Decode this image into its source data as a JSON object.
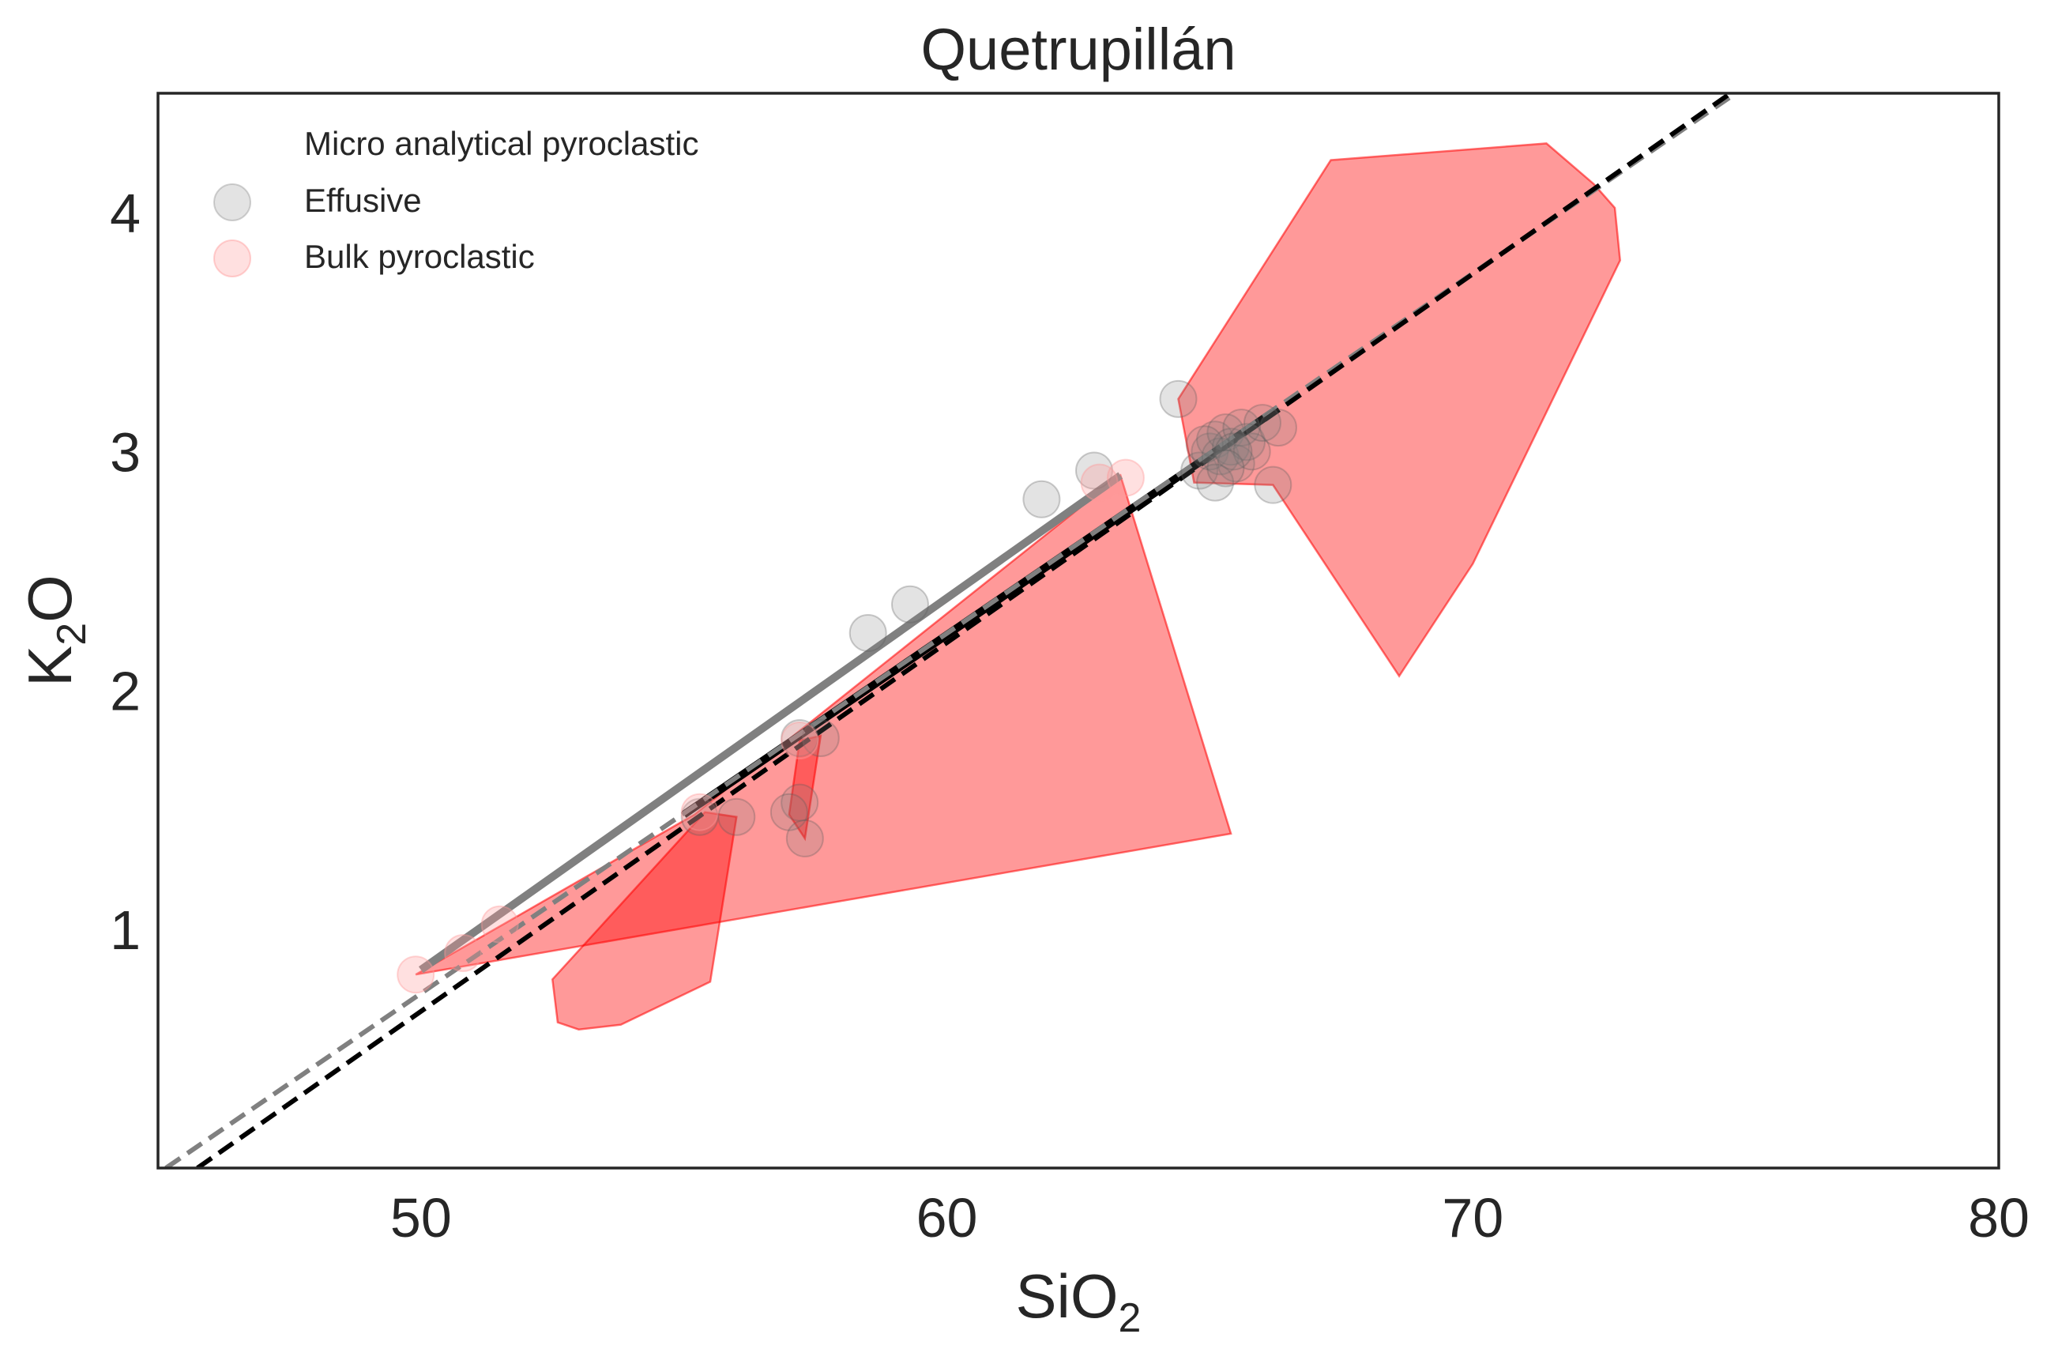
{
  "chart_data": {
    "type": "scatter",
    "title": "Quetrupillán",
    "xlabel": {
      "main": "SiO",
      "sub": "2"
    },
    "ylabel": {
      "main": "K",
      "sub": "2",
      "tail": "O"
    },
    "xlim": [
      45,
      80
    ],
    "ylim": [
      0,
      4.5
    ],
    "xticks": [
      50,
      60,
      70,
      80
    ],
    "yticks": [
      1,
      2,
      3,
      4
    ],
    "grid": false,
    "legend": {
      "position": "top-left",
      "entries": [
        {
          "label": "Micro analytical pyroclastic",
          "marker": "none"
        },
        {
          "label": "Effusive",
          "color": "#808080"
        },
        {
          "label": "Bulk pyroclastic",
          "color": "#ff9999"
        }
      ]
    },
    "series": [
      {
        "name": "Effusive",
        "color": "#808080",
        "points": [
          [
            64.4,
            3.22
          ],
          [
            64.8,
            2.92
          ],
          [
            65.0,
            3.0
          ],
          [
            65.1,
            3.05
          ],
          [
            65.2,
            2.98
          ],
          [
            65.3,
            3.08
          ],
          [
            65.4,
            3.02
          ],
          [
            65.5,
            2.95
          ],
          [
            65.6,
            3.1
          ],
          [
            65.7,
            3.04
          ],
          [
            65.8,
            3.0
          ],
          [
            66.0,
            3.12
          ],
          [
            66.3,
            3.1
          ],
          [
            66.2,
            2.86
          ],
          [
            65.1,
            2.87
          ],
          [
            64.9,
            3.03
          ],
          [
            65.45,
            3.0
          ],
          [
            65.3,
            2.93
          ],
          [
            62.8,
            2.92
          ],
          [
            61.8,
            2.8
          ],
          [
            59.3,
            2.36
          ],
          [
            58.5,
            2.24
          ],
          [
            57.2,
            1.8
          ],
          [
            57.6,
            1.8
          ],
          [
            57.2,
            1.53
          ],
          [
            57.0,
            1.49
          ],
          [
            57.3,
            1.38
          ],
          [
            56.0,
            1.47
          ],
          [
            55.3,
            1.47
          ]
        ]
      },
      {
        "name": "Bulk pyroclastic",
        "color": "#ff9999",
        "points": [
          [
            49.9,
            0.81
          ],
          [
            50.8,
            0.9
          ],
          [
            51.5,
            1.02
          ],
          [
            55.3,
            1.49
          ],
          [
            63.4,
            2.89
          ],
          [
            62.9,
            2.87
          ],
          [
            57.2,
            1.79
          ]
        ]
      }
    ],
    "hulls": [
      {
        "color": "#ff0000",
        "opacity": 0.4,
        "points": [
          [
            49.9,
            0.81
          ],
          [
            55.2,
            1.48
          ],
          [
            63.3,
            2.9
          ],
          [
            65.4,
            1.4
          ]
        ]
      },
      {
        "color": "#ff0000",
        "opacity": 0.4,
        "points": [
          [
            55.4,
            1.49
          ],
          [
            56.0,
            1.47
          ],
          [
            55.5,
            0.78
          ],
          [
            53.8,
            0.6
          ],
          [
            53.0,
            0.58
          ],
          [
            52.6,
            0.61
          ],
          [
            52.5,
            0.79
          ]
        ]
      },
      {
        "color": "#ff0000",
        "opacity": 0.4,
        "points": [
          [
            57.0,
            1.48
          ],
          [
            57.3,
            1.38
          ],
          [
            57.6,
            1.81
          ],
          [
            57.2,
            1.79
          ]
        ]
      },
      {
        "color": "#ff0000",
        "opacity": 0.4,
        "points": [
          [
            64.4,
            3.22
          ],
          [
            67.3,
            4.22
          ],
          [
            71.4,
            4.29
          ],
          [
            72.3,
            4.12
          ],
          [
            72.7,
            4.02
          ],
          [
            72.8,
            3.8
          ],
          [
            70.0,
            2.53
          ],
          [
            68.6,
            2.06
          ],
          [
            66.2,
            2.86
          ],
          [
            64.7,
            2.87
          ]
        ]
      }
    ],
    "fit_lines": [
      {
        "color": "#808080",
        "style": "solid",
        "width": "thick",
        "points": [
          [
            50.0,
            0.83
          ],
          [
            63.3,
            2.9
          ]
        ]
      },
      {
        "color": "#000000",
        "style": "solid",
        "width": "thick",
        "points": [
          [
            55.0,
            1.48
          ],
          [
            66.3,
            3.18
          ]
        ]
      },
      {
        "color": "#808080",
        "style": "dashed",
        "width": "medium",
        "points": [
          [
            45.15,
            0.0
          ],
          [
            75.0,
            4.5
          ]
        ]
      },
      {
        "color": "#000000",
        "style": "dashed",
        "width": "medium",
        "points": [
          [
            45.75,
            0.0
          ],
          [
            74.9,
            4.5
          ]
        ]
      }
    ]
  }
}
